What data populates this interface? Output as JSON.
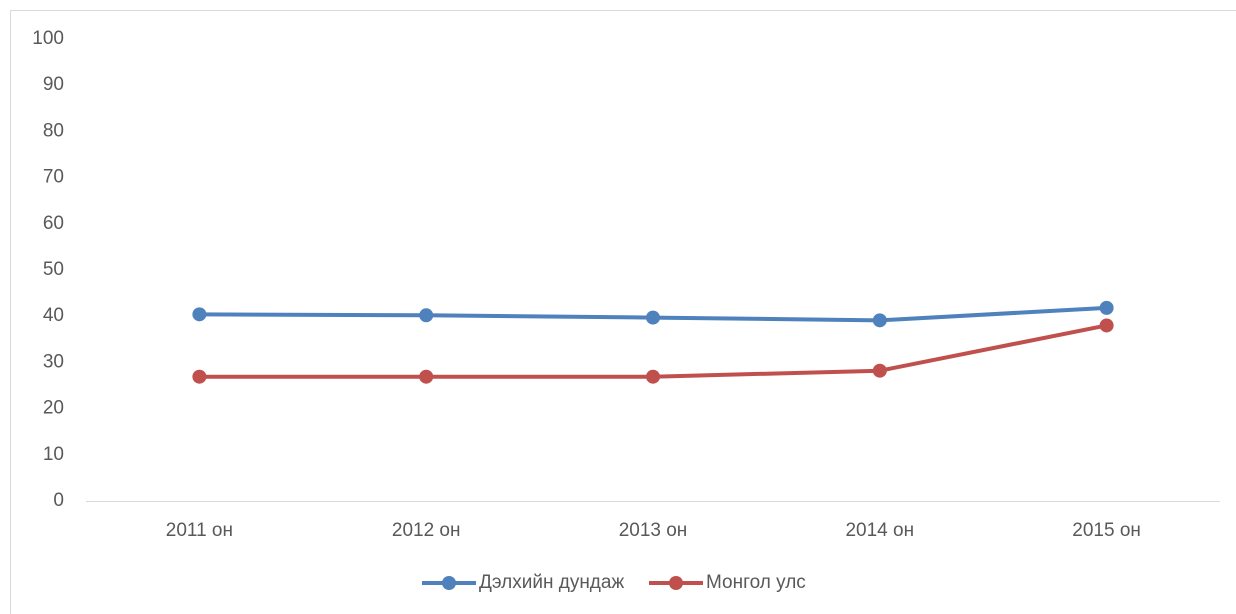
{
  "chart_data": {
    "type": "line",
    "categories": [
      "2011 он",
      "2012 он",
      "2013 он",
      "2014 он",
      "2015 он"
    ],
    "series": [
      {
        "name": "Дэлхийн дундаж",
        "color": "#4f81bd",
        "values": [
          40.4,
          40.2,
          39.7,
          39.1,
          41.8
        ]
      },
      {
        "name": "Монгол улс",
        "color": "#c0504d",
        "values": [
          26.9,
          26.9,
          26.9,
          28.2,
          38.0
        ]
      }
    ],
    "ylim": [
      0,
      100
    ],
    "yticks": [
      0,
      10,
      20,
      30,
      40,
      50,
      60,
      70,
      80,
      90,
      100
    ],
    "grid": false,
    "legend": "bottom"
  }
}
